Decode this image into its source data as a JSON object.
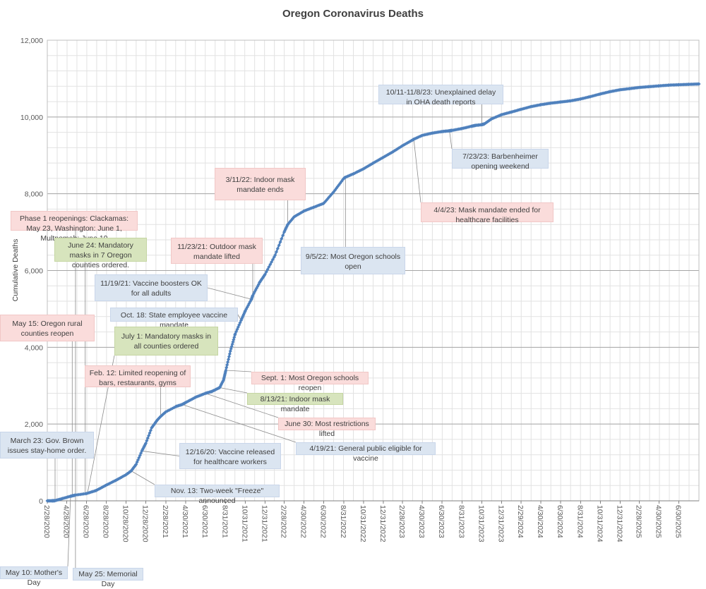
{
  "chart_data": {
    "type": "line",
    "title": "Oregon Coronavirus Deaths",
    "xlabel": "",
    "ylabel": "Cumulative Deaths",
    "ylim": [
      0,
      12000
    ],
    "xlim": [
      "2020-02-28",
      "2025-08-31"
    ],
    "grid": true,
    "yticks": [
      "0",
      "2,000",
      "4,000",
      "6,000",
      "8,000",
      "10,000",
      "12,000"
    ],
    "xticks": [
      "2/28/2020",
      "4/28/2020",
      "6/28/2020",
      "8/28/2020",
      "10/28/2020",
      "12/28/2020",
      "2/28/2021",
      "4/30/2021",
      "6/30/2021",
      "8/31/2021",
      "10/31/2021",
      "12/31/2021",
      "2/28/2022",
      "4/30/2022",
      "6/30/2022",
      "8/31/2022",
      "10/31/2022",
      "12/31/2022",
      "2/28/2023",
      "4/30/2023",
      "6/30/2023",
      "8/31/2023",
      "10/31/2023",
      "12/31/2023",
      "2/29/2024",
      "4/30/2024",
      "6/30/2024",
      "8/31/2024",
      "10/31/2024",
      "12/31/2024",
      "2/28/2025",
      "4/30/2025",
      "6/30/2025"
    ],
    "series": [
      {
        "color": "#4f81bd",
        "points": [
          [
            "2020-02-28",
            0
          ],
          [
            "2020-03-14",
            1
          ],
          [
            "2020-03-23",
            5
          ],
          [
            "2020-04-15",
            60
          ],
          [
            "2020-05-10",
            120
          ],
          [
            "2020-05-25",
            150
          ],
          [
            "2020-06-28",
            190
          ],
          [
            "2020-07-28",
            270
          ],
          [
            "2020-08-28",
            410
          ],
          [
            "2020-09-28",
            540
          ],
          [
            "2020-10-28",
            680
          ],
          [
            "2020-11-13",
            780
          ],
          [
            "2020-11-28",
            950
          ],
          [
            "2020-12-16",
            1300
          ],
          [
            "2020-12-28",
            1500
          ],
          [
            "2021-01-15",
            1900
          ],
          [
            "2021-02-01",
            2100
          ],
          [
            "2021-02-12",
            2200
          ],
          [
            "2021-02-28",
            2320
          ],
          [
            "2021-04-01",
            2460
          ],
          [
            "2021-04-19",
            2510
          ],
          [
            "2021-04-30",
            2560
          ],
          [
            "2021-05-31",
            2700
          ],
          [
            "2021-06-30",
            2800
          ],
          [
            "2021-07-20",
            2850
          ],
          [
            "2021-08-13",
            2950
          ],
          [
            "2021-08-25",
            3150
          ],
          [
            "2021-09-01",
            3400
          ],
          [
            "2021-09-15",
            3900
          ],
          [
            "2021-09-30",
            4350
          ],
          [
            "2021-10-18",
            4700
          ],
          [
            "2021-10-31",
            4950
          ],
          [
            "2021-11-19",
            5250
          ],
          [
            "2021-11-23",
            5350
          ],
          [
            "2021-12-15",
            5700
          ],
          [
            "2021-12-31",
            5900
          ],
          [
            "2022-01-31",
            6400
          ],
          [
            "2022-02-28",
            7000
          ],
          [
            "2022-03-11",
            7200
          ],
          [
            "2022-03-31",
            7400
          ],
          [
            "2022-04-30",
            7550
          ],
          [
            "2022-05-31",
            7650
          ],
          [
            "2022-06-30",
            7750
          ],
          [
            "2022-07-31",
            8050
          ],
          [
            "2022-08-31",
            8400
          ],
          [
            "2022-09-05",
            8430
          ],
          [
            "2022-09-30",
            8520
          ],
          [
            "2022-10-31",
            8650
          ],
          [
            "2022-11-30",
            8800
          ],
          [
            "2022-12-31",
            8950
          ],
          [
            "2023-01-31",
            9100
          ],
          [
            "2023-02-28",
            9250
          ],
          [
            "2023-03-31",
            9400
          ],
          [
            "2023-04-04",
            9420
          ],
          [
            "2023-04-30",
            9520
          ],
          [
            "2023-05-31",
            9580
          ],
          [
            "2023-06-30",
            9620
          ],
          [
            "2023-07-23",
            9640
          ],
          [
            "2023-07-31",
            9650
          ],
          [
            "2023-08-31",
            9700
          ],
          [
            "2023-09-30",
            9760
          ],
          [
            "2023-10-11",
            9780
          ],
          [
            "2023-10-31",
            9800
          ],
          [
            "2023-11-08",
            9820
          ],
          [
            "2023-11-30",
            9950
          ],
          [
            "2023-12-31",
            10060
          ],
          [
            "2024-01-31",
            10130
          ],
          [
            "2024-02-29",
            10200
          ],
          [
            "2024-03-31",
            10270
          ],
          [
            "2024-04-30",
            10320
          ],
          [
            "2024-05-31",
            10360
          ],
          [
            "2024-06-30",
            10390
          ],
          [
            "2024-07-31",
            10420
          ],
          [
            "2024-08-31",
            10470
          ],
          [
            "2024-09-30",
            10530
          ],
          [
            "2024-10-31",
            10600
          ],
          [
            "2024-11-30",
            10660
          ],
          [
            "2024-12-31",
            10710
          ],
          [
            "2025-01-31",
            10740
          ],
          [
            "2025-02-28",
            10770
          ],
          [
            "2025-03-31",
            10790
          ],
          [
            "2025-04-30",
            10810
          ],
          [
            "2025-05-31",
            10830
          ],
          [
            "2025-06-30",
            10840
          ],
          [
            "2025-07-31",
            10850
          ],
          [
            "2025-08-31",
            10860
          ]
        ]
      }
    ],
    "annotations": [
      {
        "text": "10/11-11/8/23: Unexplained delay in OHA death reports",
        "color": "blue",
        "date": "2023-10-31",
        "value": 9800
      },
      {
        "text": "7/23/23: Barbenheimer opening weekend",
        "color": "blue",
        "date": "2023-07-23",
        "value": 9640
      },
      {
        "text": "4/4/23: Mask mandate ended for healthcare facilities",
        "color": "pink",
        "date": "2023-04-04",
        "value": 9420
      },
      {
        "text": "3/11/22: Indoor mask mandate ends",
        "color": "pink",
        "date": "2022-03-11",
        "value": 7200
      },
      {
        "text": "9/5/22: Most Oregon schools open",
        "color": "blue",
        "date": "2022-09-05",
        "value": 8430
      },
      {
        "text": "Phase 1 reopenings: Clackamas: May 23, Washington: June 1, Multnomah: June 19",
        "color": "pink",
        "date": "2020-05-25",
        "value": 150
      },
      {
        "text": "June 24: Mandatory masks in 7 Oregon counties ordered.",
        "color": "green",
        "date": "2020-06-24",
        "value": 185
      },
      {
        "text": "11/23/21: Outdoor mask mandate lifted",
        "color": "pink",
        "date": "2021-11-23",
        "value": 5350
      },
      {
        "text": "11/19/21: Vaccine boosters OK for all adults",
        "color": "blue",
        "date": "2021-11-19",
        "value": 5250
      },
      {
        "text": "Oct. 18: State employee vaccine mandate",
        "color": "blue",
        "date": "2021-10-18",
        "value": 4700
      },
      {
        "text": "May 15: Oregon rural counties reopen",
        "color": "pink",
        "date": "2020-05-15",
        "value": 130
      },
      {
        "text": "July 1: Mandatory masks in all counties ordered",
        "color": "green",
        "date": "2020-07-01",
        "value": 195
      },
      {
        "text": "Feb. 12: Limited reopening of bars, restaurants, gyms",
        "color": "pink",
        "date": "2021-02-12",
        "value": 2200
      },
      {
        "text": "Sept. 1: Most Oregon schools reopen",
        "color": "pink",
        "date": "2021-09-01",
        "value": 3400
      },
      {
        "text": "8/13/21: Indoor mask mandate",
        "color": "green",
        "date": "2021-08-13",
        "value": 2950
      },
      {
        "text": "June 30: Most restrictions lifted",
        "color": "pink",
        "date": "2021-06-30",
        "value": 2800
      },
      {
        "text": "4/19/21: General public eligible for vaccine",
        "color": "blue",
        "date": "2021-04-19",
        "value": 2510
      },
      {
        "text": "March 23: Gov. Brown issues stay-home order.",
        "color": "blue",
        "date": "2020-03-23",
        "value": 5
      },
      {
        "text": "12/16/20: Vaccine released for healthcare workers",
        "color": "blue",
        "date": "2020-12-16",
        "value": 1300
      },
      {
        "text": "Nov. 13: Two-week \"Freeze\" announced",
        "color": "blue",
        "date": "2020-11-13",
        "value": 780
      },
      {
        "text": "May 10: Mother's Day",
        "color": "blue",
        "date": "2020-05-10",
        "value": 120
      },
      {
        "text": "May 25: Memorial Day",
        "color": "blue",
        "date": "2020-05-25",
        "value": 150
      }
    ]
  }
}
